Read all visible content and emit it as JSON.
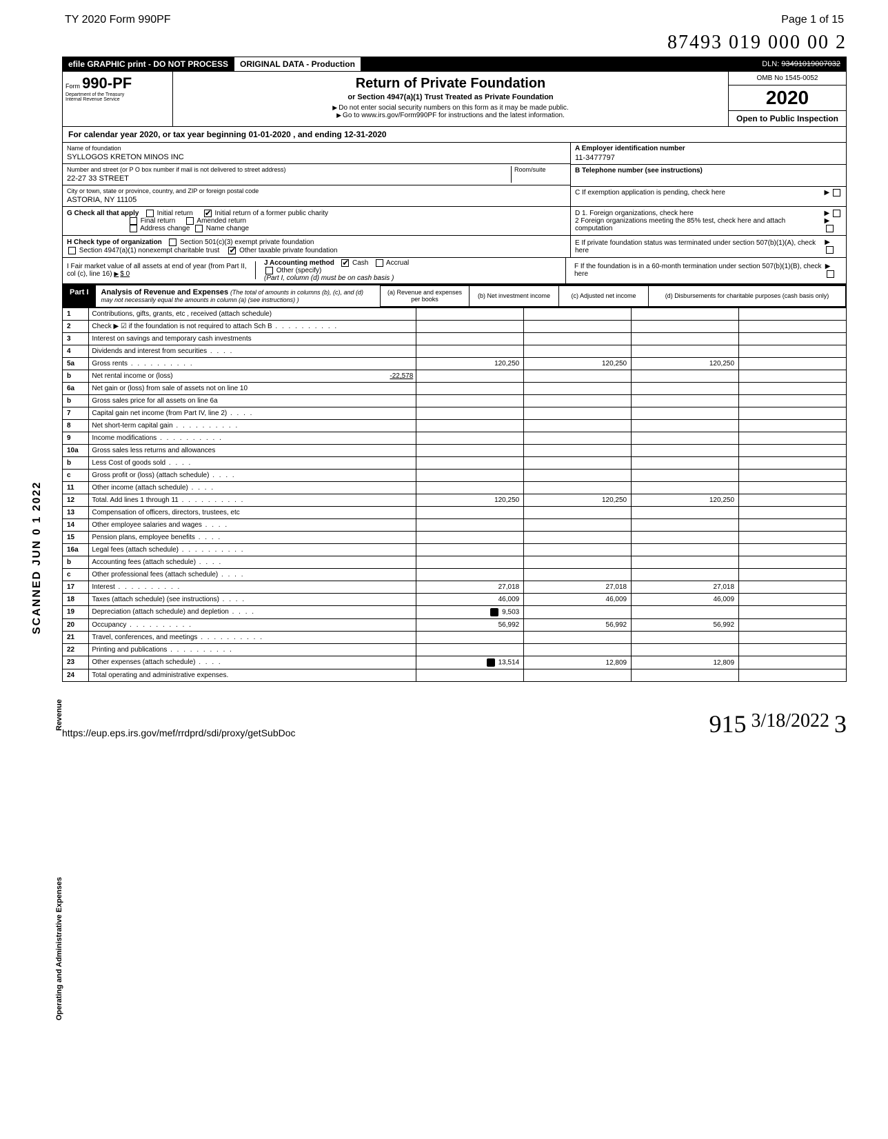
{
  "page_header": {
    "left": "TY 2020 Form 990PF",
    "right": "Page 1 of 15"
  },
  "handwritten_top": "87493 019 000 00 2",
  "topbar": {
    "left": "efile GRAPHIC print - DO NOT PROCESS",
    "mid": "ORIGINAL DATA - Production",
    "dln_label": "DLN:",
    "dln": "93491019007032"
  },
  "form_header": {
    "form_prefix": "Form",
    "form_no": "990-PF",
    "dept1": "Department of the Treasury",
    "dept2": "Internal Revenue Service",
    "title": "Return of Private Foundation",
    "sub1": "or Section 4947(a)(1) Trust Treated as Private Foundation",
    "sub2a": "Do not enter social security numbers on this form as it may be made public.",
    "sub2b": "Go to www.irs.gov/Form990PF for instructions and the latest information.",
    "omb": "OMB No 1545-0052",
    "year": "2020",
    "open": "Open to Public Inspection"
  },
  "cal_year_line": "For calendar year 2020, or tax year beginning 01-01-2020         , and ending 12-31-2020",
  "foundation": {
    "name_label": "Name of foundation",
    "name": "SYLLOGOS KRETON MINOS INC",
    "street_label": "Number and street (or P O  box number if mail is not delivered to street address)",
    "room_label": "Room/suite",
    "street": "22-27 33 STREET",
    "city_label": "City or town, state or province, country, and ZIP or foreign postal code",
    "city": "ASTORIA, NY  11105"
  },
  "right_boxes": {
    "A_label": "A Employer identification number",
    "A_val": "11-3477797",
    "B_label": "B Telephone number (see instructions)",
    "C_label": "C If exemption application is pending, check here",
    "D1": "D 1. Foreign organizations, check here",
    "D2": "2  Foreign organizations meeting the 85% test, check here and attach computation",
    "E": "E  If private foundation status was terminated under section 507(b)(1)(A), check here",
    "F": "F  If the foundation is in a 60-month termination under section 507(b)(1)(B), check here"
  },
  "G": {
    "label": "G Check all that apply",
    "opts": [
      "Initial return",
      "Initial return of a former public charity",
      "Final return",
      "Amended return",
      "Address change",
      "Name change"
    ],
    "checked_idx": 1
  },
  "H": {
    "label": "H Check type of organization",
    "opts": [
      "Section 501(c)(3) exempt private foundation",
      "Section 4947(a)(1) nonexempt charitable trust",
      "Other taxable private foundation"
    ],
    "checked_idx": 2
  },
  "I": {
    "left_label": "I Fair market value of all assets at end of year (from Part II, col (c), line 16)",
    "left_val": "$  0",
    "mid_label": "J Accounting method",
    "cash": "Cash",
    "accrual": "Accrual",
    "other": "Other (specify)",
    "note": "(Part I, column (d) must be on cash basis )"
  },
  "part1": {
    "label": "Part I",
    "title_bold": "Analysis of Revenue and Expenses",
    "title_rest": "(The total of amounts in columns (b), (c), and (d) may not necessarily equal the amounts in column (a) (see instructions) )",
    "col_a": "(a)    Revenue and expenses per books",
    "col_b": "(b)  Net investment income",
    "col_c": "(c)  Adjusted net income",
    "col_d": "(d)  Disbursements for charitable purposes (cash basis only)"
  },
  "lines": [
    {
      "n": "1",
      "label": "Contributions, gifts, grants, etc , received (attach schedule)"
    },
    {
      "n": "2",
      "label": "Check ▶ ☑ if the foundation is not required to attach Sch B",
      "dots": true
    },
    {
      "n": "3",
      "label": "Interest on savings and temporary cash investments"
    },
    {
      "n": "4",
      "label": "Dividends and interest from securities",
      "dots": "short"
    },
    {
      "n": "5a",
      "label": "Gross rents",
      "dots": true,
      "a": "120,250",
      "b": "120,250",
      "c": "120,250"
    },
    {
      "n": "b",
      "label": "Net rental income or (loss)",
      "inline_val": "-22,578"
    },
    {
      "n": "6a",
      "label": "Net gain or (loss) from sale of assets not on line 10"
    },
    {
      "n": "b",
      "label": "Gross sales price for all assets on line 6a"
    },
    {
      "n": "7",
      "label": "Capital gain net income (from Part IV, line 2)",
      "dots": "short"
    },
    {
      "n": "8",
      "label": "Net short-term capital gain",
      "dots": true
    },
    {
      "n": "9",
      "label": "Income modifications",
      "dots": true
    },
    {
      "n": "10a",
      "label": "Gross sales less returns and allowances"
    },
    {
      "n": "b",
      "label": "Less  Cost of goods sold",
      "dots": "short"
    },
    {
      "n": "c",
      "label": "Gross profit or (loss) (attach schedule)",
      "dots": "short"
    },
    {
      "n": "11",
      "label": "Other income (attach schedule)",
      "dots": "short"
    },
    {
      "n": "12",
      "label": "Total. Add lines 1 through 11",
      "dots": true,
      "a": "120,250",
      "b": "120,250",
      "c": "120,250"
    },
    {
      "n": "13",
      "label": "Compensation of officers, directors, trustees, etc"
    },
    {
      "n": "14",
      "label": "Other employee salaries and wages",
      "dots": "short"
    },
    {
      "n": "15",
      "label": "Pension plans, employee benefits",
      "dots": "short"
    },
    {
      "n": "16a",
      "label": "Legal fees (attach schedule)",
      "dots": true
    },
    {
      "n": "b",
      "label": "Accounting fees (attach schedule)",
      "dots": "short"
    },
    {
      "n": "c",
      "label": "Other professional fees (attach schedule)",
      "dots": "short"
    },
    {
      "n": "17",
      "label": "Interest",
      "dots": true,
      "a": "27,018",
      "b": "27,018",
      "c": "27,018"
    },
    {
      "n": "18",
      "label": "Taxes (attach schedule) (see instructions)",
      "dots": "short",
      "a": "46,009",
      "b": "46,009",
      "c": "46,009"
    },
    {
      "n": "19",
      "label": "Depreciation (attach schedule) and depletion",
      "dots": "short",
      "icon": true,
      "a": "9,503"
    },
    {
      "n": "20",
      "label": "Occupancy",
      "dots": true,
      "a": "56,992",
      "b": "56,992",
      "c": "56,992"
    },
    {
      "n": "21",
      "label": "Travel, conferences, and meetings",
      "dots": true
    },
    {
      "n": "22",
      "label": "Printing and publications",
      "dots": true
    },
    {
      "n": "23",
      "label": "Other expenses (attach schedule)",
      "dots": "short",
      "icon": true,
      "a": "13,514",
      "b": "12,809",
      "c": "12,809"
    },
    {
      "n": "24",
      "label": "Total operating and administrative expenses."
    }
  ],
  "side_labels": {
    "scanned": "SCANNED  JUN 0 1 2022",
    "revenue": "Revenue",
    "expenses": "Operating and Administrative Expenses"
  },
  "footer": {
    "url": "https://eup.eps.irs.gov/mef/rrdprd/sdi/proxy/getSubDoc",
    "sig": "915",
    "date": "3/18/2022",
    "tail": "3"
  }
}
